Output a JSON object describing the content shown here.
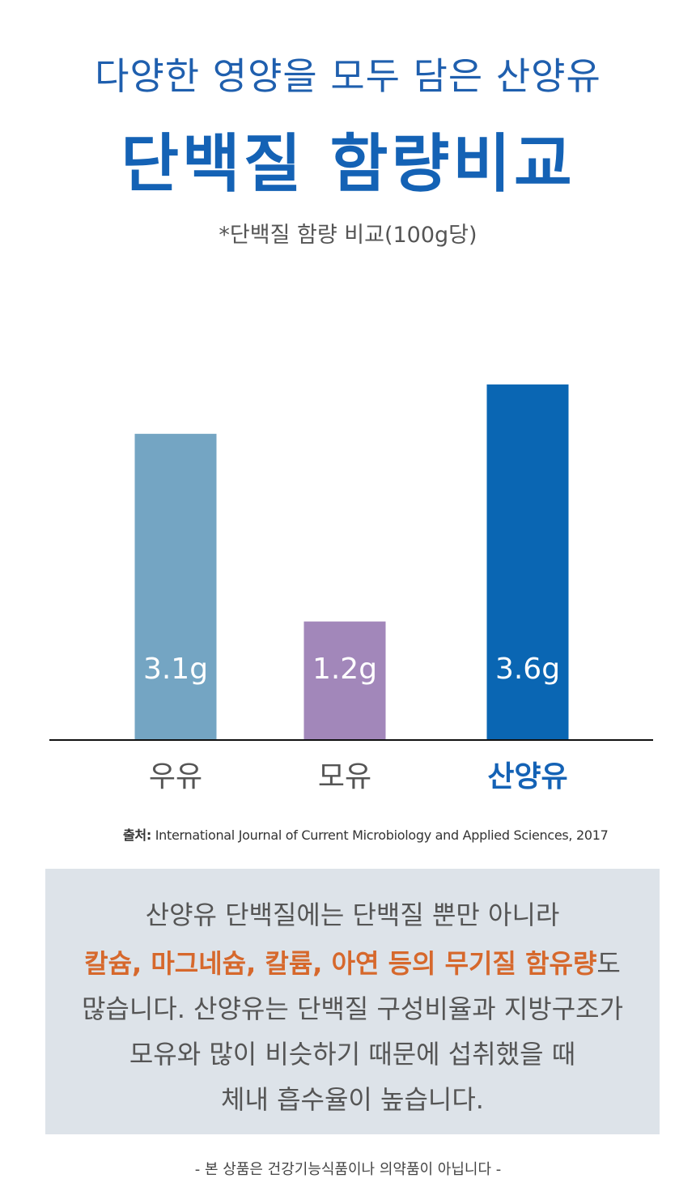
{
  "header": {
    "subtitle": "다양한 영양을 모두 담은 산양유",
    "title": "단백질 함량비교",
    "note": "*단백질 함량 비교(100g당)"
  },
  "chart_data": {
    "type": "bar",
    "categories": [
      "우유",
      "모유",
      "산양유"
    ],
    "values": [
      3.1,
      1.2,
      3.6
    ],
    "value_labels": [
      "3.1g",
      "1.2g",
      "3.6g"
    ],
    "colors": [
      "#74a5c3",
      "#a287ba",
      "#0a66b3"
    ],
    "highlight_category": "산양유",
    "highlight_color": "#1462b5",
    "ylim": [
      0,
      4.2
    ],
    "grid": false
  },
  "source": {
    "label": "출처:",
    "text": " International Journal of Current Microbiology and Applied Sciences, 2017"
  },
  "description": {
    "line1": "산양유 단백질에는 단백질 뿐만 아니라",
    "line2_highlight": "칼슘, 마그네슘, 칼륨, 아연 등의 무기질 함유량",
    "line2_rest": "도",
    "line3": "많습니다. 산양유는 단백질 구성비율과 지방구조가",
    "line4": "모유와 많이 비슷하기 때문에 섭취했을 때",
    "line5": "체내 흡수율이 높습니다."
  },
  "disclaimer": "- 본 상품은 건강기능식품이나 의약품이 아닙니다 -"
}
